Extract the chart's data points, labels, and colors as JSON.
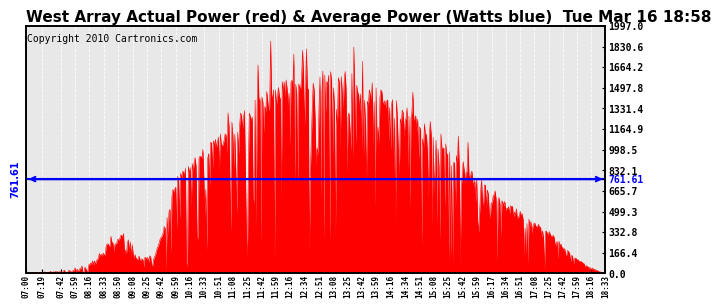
{
  "title": "West Array Actual Power (red) & Average Power (Watts blue)  Tue Mar 16 18:58",
  "copyright": "Copyright 2010 Cartronics.com",
  "average_power": 761.61,
  "ymax": 1997.0,
  "ymin": 0.0,
  "yticks_right": [
    1997.0,
    1830.6,
    1664.2,
    1497.8,
    1331.4,
    1164.9,
    998.5,
    832.1,
    665.7,
    499.3,
    332.8,
    166.4,
    0.0
  ],
  "fill_color": "#FF0000",
  "line_color": "#0000FF",
  "background_color": "#FFFFFF",
  "plot_bg_color": "#E8E8E8",
  "title_fontsize": 11,
  "copyright_fontsize": 7,
  "xtick_labels": [
    "07:00",
    "07:19",
    "07:42",
    "07:59",
    "08:16",
    "08:33",
    "08:50",
    "09:08",
    "09:25",
    "09:42",
    "09:59",
    "10:16",
    "10:33",
    "10:51",
    "11:08",
    "11:25",
    "11:42",
    "11:59",
    "12:16",
    "12:34",
    "12:51",
    "13:08",
    "13:25",
    "13:42",
    "13:59",
    "14:16",
    "14:34",
    "14:51",
    "15:08",
    "15:25",
    "15:42",
    "15:59",
    "16:17",
    "16:34",
    "16:51",
    "17:08",
    "17:25",
    "17:42",
    "17:59",
    "18:16",
    "18:33"
  ]
}
